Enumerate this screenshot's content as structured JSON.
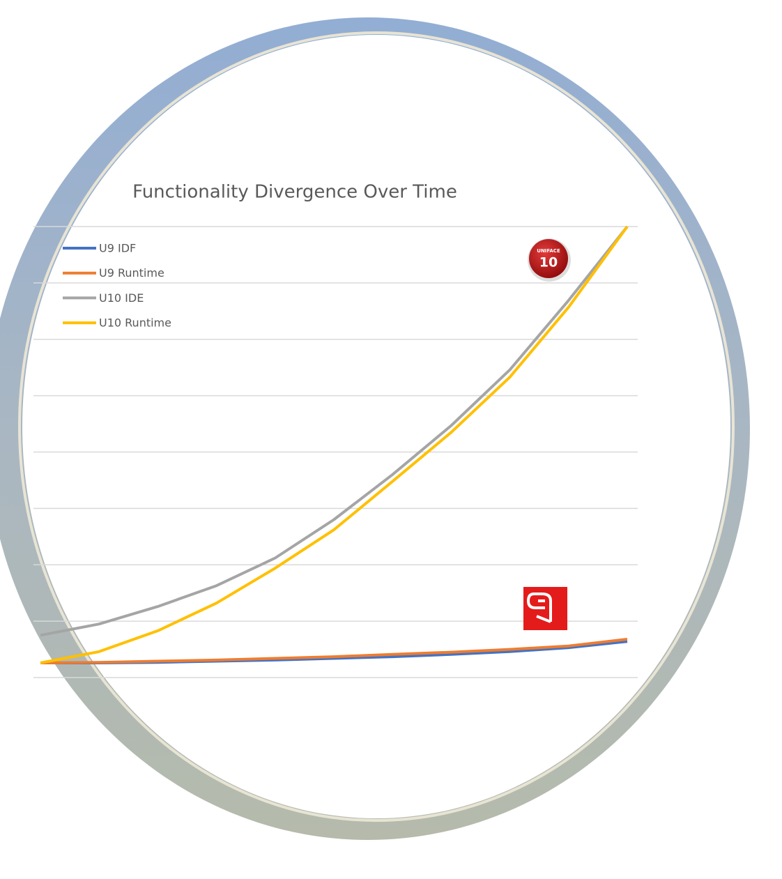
{
  "chart_data": {
    "type": "line",
    "title": "Functionality Divergence Over Time",
    "categories": [
      null,
      null,
      null,
      null,
      null,
      null,
      null,
      null,
      null,
      null,
      null
    ],
    "series": [
      {
        "name": "U9 IDF",
        "color": "#4472c4",
        "values": [
          0.26,
          0.26,
          0.27,
          0.29,
          0.31,
          0.34,
          0.37,
          0.41,
          0.46,
          0.53,
          0.64
        ]
      },
      {
        "name": "U9 Runtime",
        "color": "#ed7d31",
        "values": [
          0.26,
          0.27,
          0.29,
          0.31,
          0.34,
          0.37,
          0.41,
          0.45,
          0.5,
          0.56,
          0.68
        ]
      },
      {
        "name": "U10 IDE",
        "color": "#a5a5a5",
        "values": [
          0.75,
          0.95,
          1.26,
          1.63,
          2.12,
          2.8,
          3.6,
          4.47,
          5.46,
          6.69,
          8
        ]
      },
      {
        "name": "U10 Runtime",
        "color": "#ffc000",
        "values": [
          0.26,
          0.46,
          0.83,
          1.32,
          1.94,
          2.62,
          3.48,
          4.35,
          5.33,
          6.57,
          8
        ]
      }
    ],
    "ylim": [
      0,
      8
    ],
    "yticks": [
      0,
      1,
      2,
      3,
      4,
      5,
      6,
      7,
      8
    ],
    "grid": true,
    "legend": "upper left",
    "annotations": [
      "UNIFACE",
      "10"
    ]
  }
}
